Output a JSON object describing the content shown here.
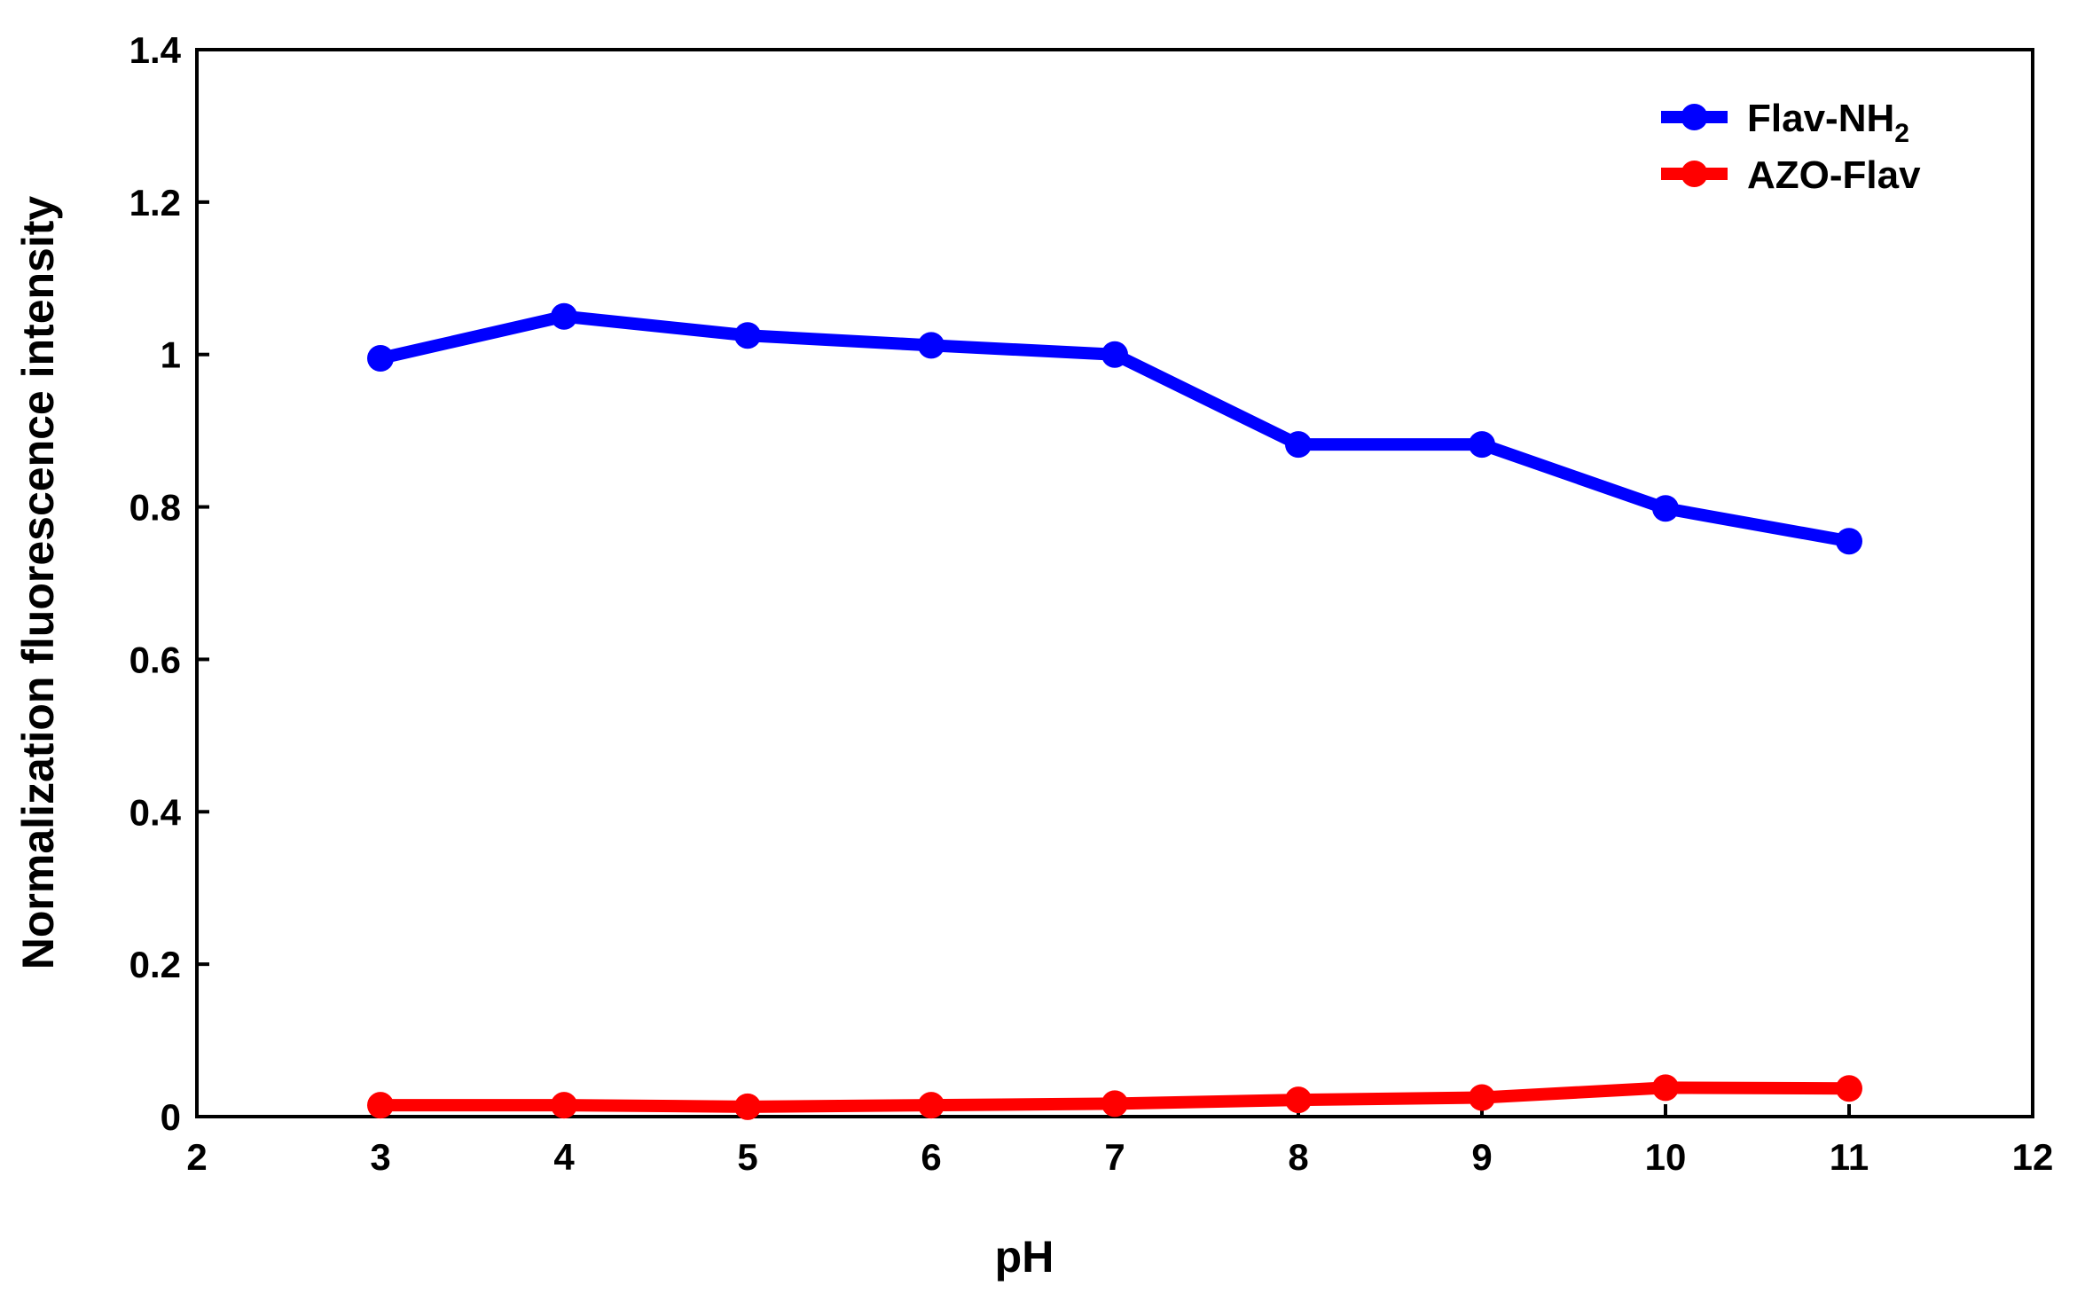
{
  "chart_data": {
    "type": "line",
    "xlabel": "pH",
    "ylabel": "Normalization fluorescence intensity",
    "xlim": [
      2,
      12
    ],
    "ylim": [
      0,
      1.4
    ],
    "xticks": [
      2,
      3,
      4,
      5,
      6,
      7,
      8,
      9,
      10,
      11,
      12
    ],
    "yticks": [
      0,
      0.2,
      0.4,
      0.6,
      0.8,
      1,
      1.2,
      1.4
    ],
    "xtick_labels": [
      "2",
      "3",
      "4",
      "5",
      "6",
      "7",
      "8",
      "9",
      "10",
      "11",
      "12"
    ],
    "ytick_labels": [
      "0",
      "0.2",
      "0.4",
      "0.6",
      "0.8",
      "1",
      "1.2",
      "1.4"
    ],
    "grid": false,
    "legend_position": "top-right",
    "x": [
      3,
      4,
      5,
      6,
      7,
      8,
      9,
      10,
      11
    ],
    "series": [
      {
        "name": "Flav-NH",
        "name_subscript": "2",
        "color": "#0000ff",
        "values": [
          0.995,
          1.05,
          1.025,
          1.012,
          1.0,
          0.882,
          0.882,
          0.798,
          0.755
        ]
      },
      {
        "name": "AZO-Flav",
        "color": "#ff0000",
        "values": [
          0.015,
          0.015,
          0.013,
          0.015,
          0.017,
          0.022,
          0.025,
          0.038,
          0.037
        ]
      }
    ]
  }
}
